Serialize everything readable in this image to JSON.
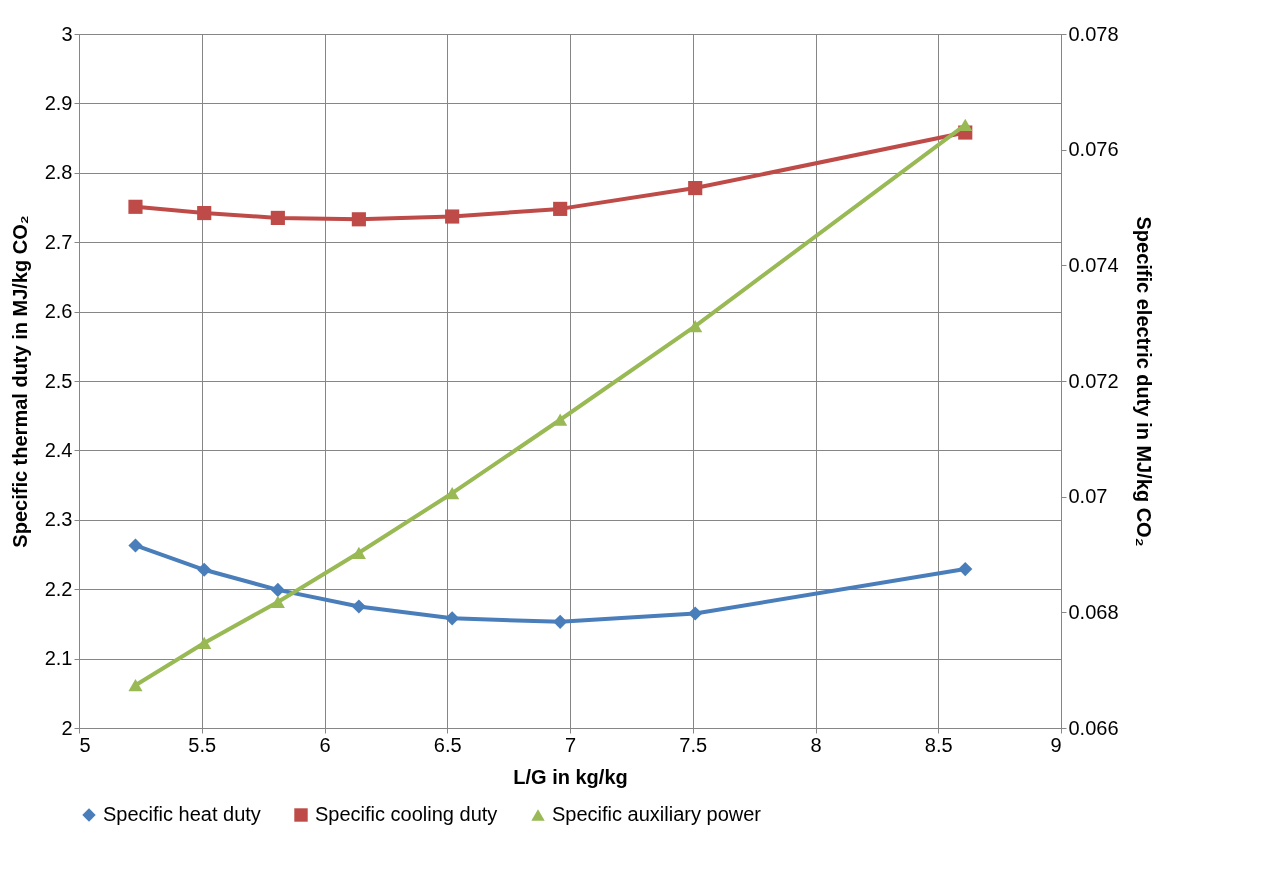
{
  "chart_data": {
    "type": "line",
    "xlabel": "L/G in kg/kg",
    "ylabel": "Specific thermal duty in MJ/kg CO₂",
    "y2label": "Specific electric duty in MJ/kg CO₂",
    "x": [
      5.23,
      5.51,
      5.81,
      6.14,
      6.52,
      6.96,
      7.51,
      8.61
    ],
    "series": [
      {
        "name": "Specific heat duty",
        "color": "#4a7ebb",
        "marker": "diamond",
        "values": [
          2.263,
          2.228,
          2.199,
          2.175,
          2.158,
          2.153,
          2.165,
          2.229
        ]
      },
      {
        "name": "Specific cooling duty",
        "color": "#be4b48",
        "marker": "square",
        "values": [
          2.751,
          2.742,
          2.735,
          2.733,
          2.737,
          2.748,
          2.778,
          2.858
        ]
      },
      {
        "name": "Specific auxiliary power",
        "color": "#98b954",
        "marker": "triangle",
        "axis": "y2",
        "values": [
          0.06674,
          0.06747,
          0.06818,
          0.06903,
          0.07006,
          0.07133,
          0.07295,
          0.07643
        ]
      }
    ],
    "xlim": [
      5,
      9
    ],
    "xticks": [
      5,
      5.5,
      6,
      6.5,
      7,
      7.5,
      8,
      8.5,
      9
    ],
    "ylim": [
      2,
      3
    ],
    "yticks": [
      2,
      2.1,
      2.2,
      2.3,
      2.4,
      2.5,
      2.6,
      2.7,
      2.8,
      2.9,
      3
    ],
    "y2lim": [
      0.066,
      0.078
    ],
    "y2ticks": [
      0.066,
      0.068,
      0.07,
      0.072,
      0.074,
      0.076,
      0.078
    ],
    "grid": true,
    "legend": "bottom",
    "line_style": "solid"
  }
}
